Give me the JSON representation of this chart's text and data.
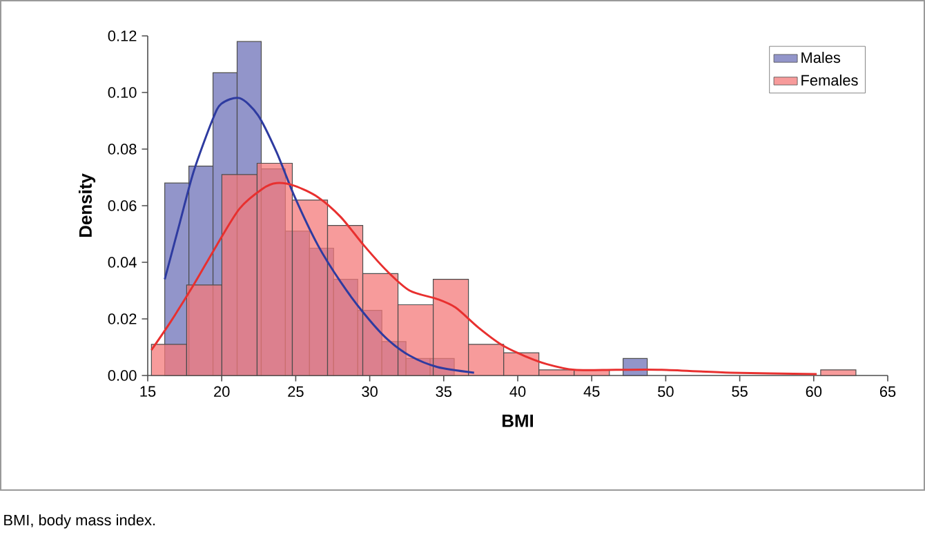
{
  "chart_data": {
    "type": "histogram",
    "xlabel": "BMI",
    "ylabel": "Density",
    "xlim": [
      15,
      65
    ],
    "ylim": [
      0,
      0.12
    ],
    "xticks": [
      15,
      20,
      25,
      30,
      35,
      40,
      45,
      50,
      55,
      60,
      65
    ],
    "yticks": [
      {
        "value": 0,
        "label": "0.00"
      },
      {
        "value": 0.02,
        "label": "0.02"
      },
      {
        "value": 0.04,
        "label": "0.04"
      },
      {
        "value": 0.06,
        "label": "0.06"
      },
      {
        "value": 0.08,
        "label": "0.08"
      },
      {
        "value": 0.1,
        "label": "0.10"
      },
      {
        "value": 0.12,
        "label": "0.12"
      }
    ],
    "legend": "top right",
    "grid": false,
    "annotations": [
      "BMI, body mass index."
    ],
    "series": [
      {
        "name": "Males",
        "color": "#6e72b8",
        "bins": [
          16.15,
          17.78,
          19.41,
          21.04,
          22.67,
          24.3,
          25.93,
          27.56,
          29.19,
          30.82,
          32.45,
          34.08,
          35.71,
          37.34,
          38.97,
          40.6,
          42.23,
          43.86,
          45.49,
          47.12,
          48.75
        ],
        "values": [
          0.068,
          0.074,
          0.107,
          0.118,
          0.073,
          0.051,
          0.045,
          0.034,
          0.023,
          0.012,
          0.006,
          0.006,
          0,
          0,
          0,
          0,
          0,
          0,
          0,
          0.006
        ]
      },
      {
        "name": "Females",
        "color": "#f47a7a",
        "bins": [
          15.25,
          17.63,
          20.01,
          22.39,
          24.77,
          27.15,
          29.53,
          31.91,
          34.29,
          36.67,
          39.05,
          41.43,
          43.81,
          46.19,
          48.57,
          50.95,
          53.33,
          55.71,
          58.09,
          60.47,
          62.85
        ],
        "values": [
          0.011,
          0.032,
          0.071,
          0.075,
          0.062,
          0.053,
          0.036,
          0.025,
          0.034,
          0.011,
          0.008,
          0.002,
          0.002,
          0,
          0,
          0,
          0,
          0,
          0,
          0.002
        ]
      },
      {
        "type": "line",
        "color": "#2e3ba0",
        "x": [
          16.15,
          17.17,
          18.1,
          19.35,
          19.97,
          21.21,
          22.45,
          23.7,
          24.94,
          26.5,
          28.04,
          29.6,
          31.15,
          32.7,
          34.57,
          37.05
        ],
        "values": [
          0.034,
          0.054,
          0.072,
          0.09,
          0.096,
          0.098,
          0.092,
          0.079,
          0.063,
          0.046,
          0.033,
          0.022,
          0.013,
          0.007,
          0.003,
          0.001
        ]
      },
      {
        "type": "line",
        "color": "#e8302f",
        "x": [
          15.25,
          16.55,
          18.1,
          19.66,
          21.21,
          22.76,
          23.7,
          24.94,
          26.5,
          28.04,
          29.6,
          31.15,
          32.7,
          34.57,
          35.8,
          37.33,
          38.87,
          40.42,
          41.98,
          43.84,
          46.63,
          49.73,
          54.4,
          60.2
        ],
        "values": [
          0.009,
          0.019,
          0.032,
          0.046,
          0.059,
          0.066,
          0.068,
          0.067,
          0.063,
          0.056,
          0.046,
          0.037,
          0.03,
          0.027,
          0.024,
          0.017,
          0.011,
          0.007,
          0.004,
          0.002,
          0.002,
          0.002,
          0.001,
          0.0005
        ]
      }
    ]
  }
}
